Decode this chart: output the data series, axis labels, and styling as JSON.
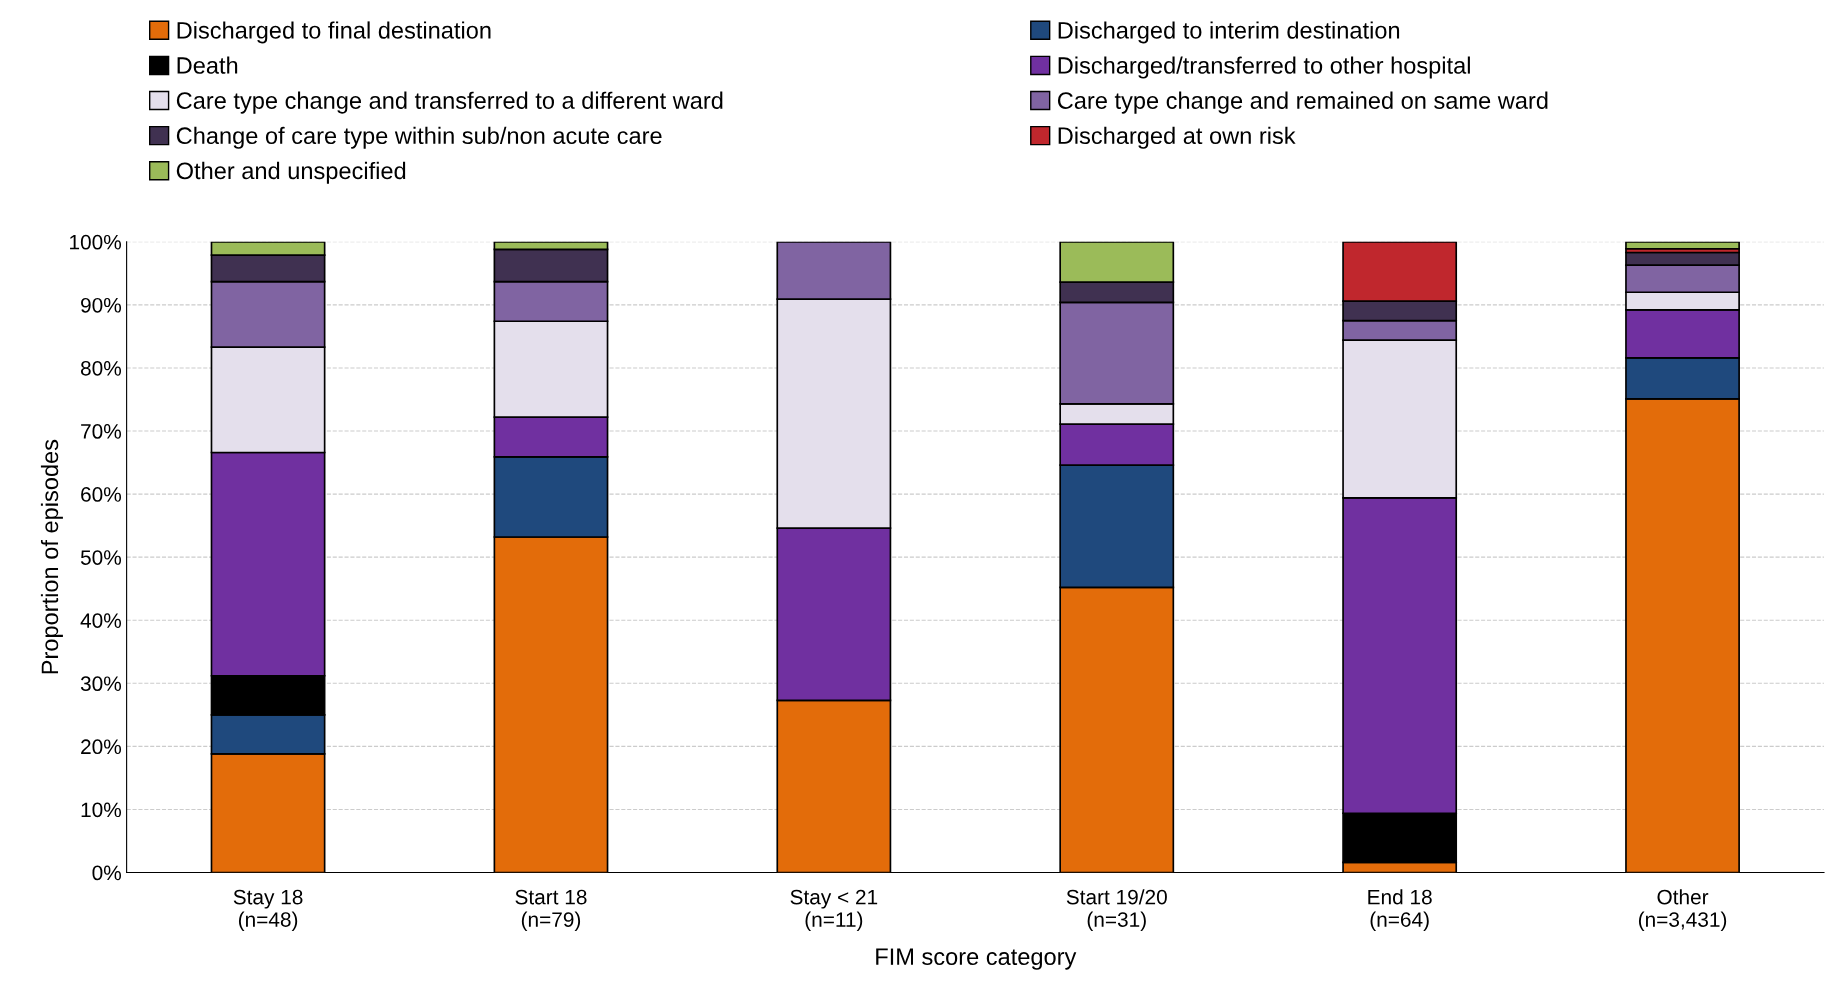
{
  "chart_data": {
    "type": "bar",
    "stacked": true,
    "xlabel": "FIM score category",
    "ylabel": "Proportion of episodes",
    "categories": [
      "Stay 18\n(n=48)",
      "Start 18\n(n=79)",
      "Stay < 21\n(n=11)",
      "Start 19/20\n(n=31)",
      "End 18\n(n=64)",
      "Other\n(n=3,431)"
    ],
    "series": [
      {
        "name": "Discharged to final destination",
        "color": "#e36c0a",
        "values": [
          18.8,
          53.2,
          27.3,
          45.2,
          1.6,
          75.1
        ]
      },
      {
        "name": "Discharged to interim destination",
        "color": "#1f497d",
        "values": [
          6.2,
          12.7,
          null,
          19.4,
          null,
          6.5
        ]
      },
      {
        "name": "Death",
        "color": "#000000",
        "values": [
          6.2,
          null,
          null,
          null,
          7.8,
          null
        ]
      },
      {
        "name": "Discharged/transferred to other hospital",
        "color": "#7030a0",
        "values": [
          35.4,
          6.3,
          27.3,
          6.5,
          50.0,
          7.6
        ]
      },
      {
        "name": "Care type change and transferred to a different ward",
        "color": "#e4dfec",
        "values": [
          16.7,
          15.2,
          36.3,
          3.2,
          25.0,
          2.8
        ]
      },
      {
        "name": "Care type change and remained on same ward",
        "color": "#8064a2",
        "values": [
          10.4,
          6.3,
          9.1,
          16.1,
          3.1,
          4.3
        ]
      },
      {
        "name": "Change of care type within sub/non acute care",
        "color": "#403151",
        "values": [
          4.2,
          5.1,
          null,
          3.2,
          3.1,
          2.0
        ]
      },
      {
        "name": "Discharged at own risk",
        "color": "#c0272d",
        "values": [
          null,
          null,
          null,
          null,
          9.4,
          0.6
        ]
      },
      {
        "name": "Other and unspecified",
        "color": "#9bbb59",
        "values": [
          2.1,
          1.2,
          null,
          6.4,
          null,
          1.1
        ]
      }
    ],
    "ylim": [
      0,
      100
    ],
    "yticks": [
      {
        "value": 0,
        "label": "0%"
      },
      {
        "value": 10,
        "label": "10%"
      },
      {
        "value": 20,
        "label": "20%"
      },
      {
        "value": 30,
        "label": "30%"
      },
      {
        "value": 40,
        "label": "40%"
      },
      {
        "value": 50,
        "label": "50%"
      },
      {
        "value": 60,
        "label": "60%"
      },
      {
        "value": 70,
        "label": "70%"
      },
      {
        "value": 80,
        "label": "80%"
      },
      {
        "value": 90,
        "label": "90%"
      },
      {
        "value": 100,
        "label": "100%"
      }
    ],
    "grid": "y",
    "legend": "top"
  }
}
